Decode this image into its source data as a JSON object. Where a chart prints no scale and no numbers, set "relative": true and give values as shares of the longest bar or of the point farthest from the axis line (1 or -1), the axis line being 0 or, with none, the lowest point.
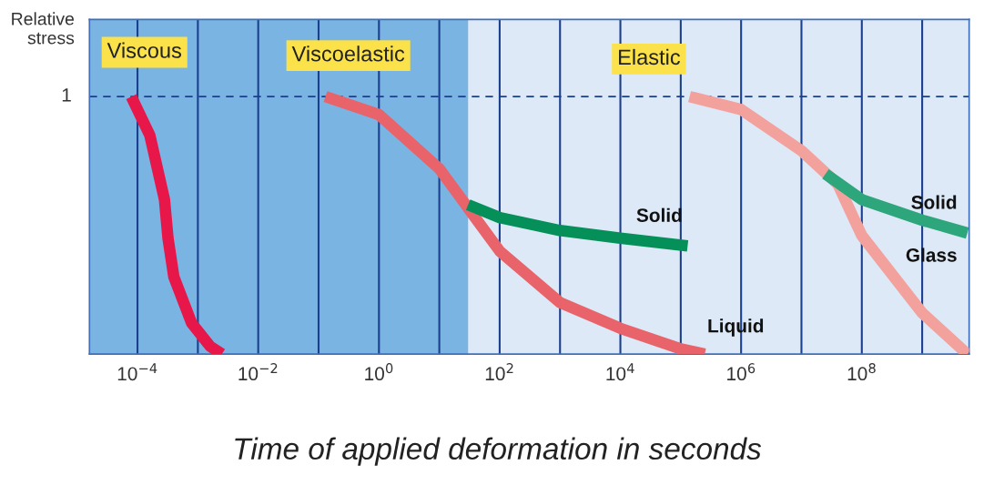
{
  "chart_data": {
    "type": "line",
    "relative": true,
    "log": "x",
    "ylabel": "Relative stress",
    "xlabel": "Time of applied deformation in seconds",
    "annotations": [
      "Viscous",
      "Viscoelastic",
      "Elastic"
    ],
    "xlim": [
      1.6e-05,
      6000000000.0
    ],
    "xticks": [
      {
        "value": 0.0001,
        "label": "10$^{−4}$"
      },
      {
        "value": 0.001,
        "label": null
      },
      {
        "value": 0.01,
        "label": "10$^{−2}$"
      },
      {
        "value": 0.1,
        "label": null
      },
      {
        "value": 1,
        "label": "10$^{0}$"
      },
      {
        "value": 10,
        "label": null
      },
      {
        "value": 100,
        "label": "10$^{2}$"
      },
      {
        "value": 1000,
        "label": null
      },
      {
        "value": 10000,
        "label": "10$^{4}$"
      },
      {
        "value": 100000,
        "label": null
      },
      {
        "value": 1000000,
        "label": "10$^{6}$"
      },
      {
        "value": 10000000,
        "label": null
      },
      {
        "value": 100000000,
        "label": "10$^{8}$"
      },
      {
        "value": 1000000000,
        "label": null
      }
    ],
    "grid": "x",
    "ref_lines": [
      {
        "axis": "y",
        "value": 1,
        "label": "1",
        "color": "#1a3f8f",
        "line_style": "dashed"
      }
    ],
    "bands": [
      {
        "axis": "x",
        "from": 1.6e-05,
        "to": 30,
        "color": "#7ab4e3"
      }
    ],
    "series": [
      {
        "color": "#e8174a",
        "x": [
          7.9e-05,
          0.00016,
          0.00028,
          0.00032,
          0.0004,
          0.00079,
          0.0016,
          0.0025
        ],
        "values": [
          1.0,
          0.85,
          0.6,
          0.45,
          0.3,
          0.12,
          0.03,
          0
        ]
      },
      {
        "name": "Liquid",
        "color": "#e9636a",
        "x": [
          0.13,
          1,
          10,
          100,
          1000,
          10000,
          100000,
          250000
        ],
        "values": [
          1.0,
          0.93,
          0.72,
          0.4,
          0.2,
          0.1,
          0.02,
          0
        ]
      },
      {
        "name": "Solid",
        "color": "#05905a",
        "x": [
          30,
          100,
          1000,
          10000,
          130000
        ],
        "values": [
          0.58,
          0.53,
          0.48,
          0.45,
          0.42
        ]
      },
      {
        "name": "Glass",
        "color": "#f2a19c",
        "x": [
          140000,
          1000000,
          10000000,
          40000000,
          100000000,
          1000000000,
          5600000000.0
        ],
        "values": [
          1.0,
          0.95,
          0.79,
          0.66,
          0.46,
          0.16,
          0
        ]
      },
      {
        "name": "Solid",
        "color": "#2ea67c",
        "x": [
          25000000,
          100000000,
          1000000000,
          5600000000.0
        ],
        "values": [
          0.7,
          0.6,
          0.52,
          0.47
        ]
      }
    ]
  }
}
